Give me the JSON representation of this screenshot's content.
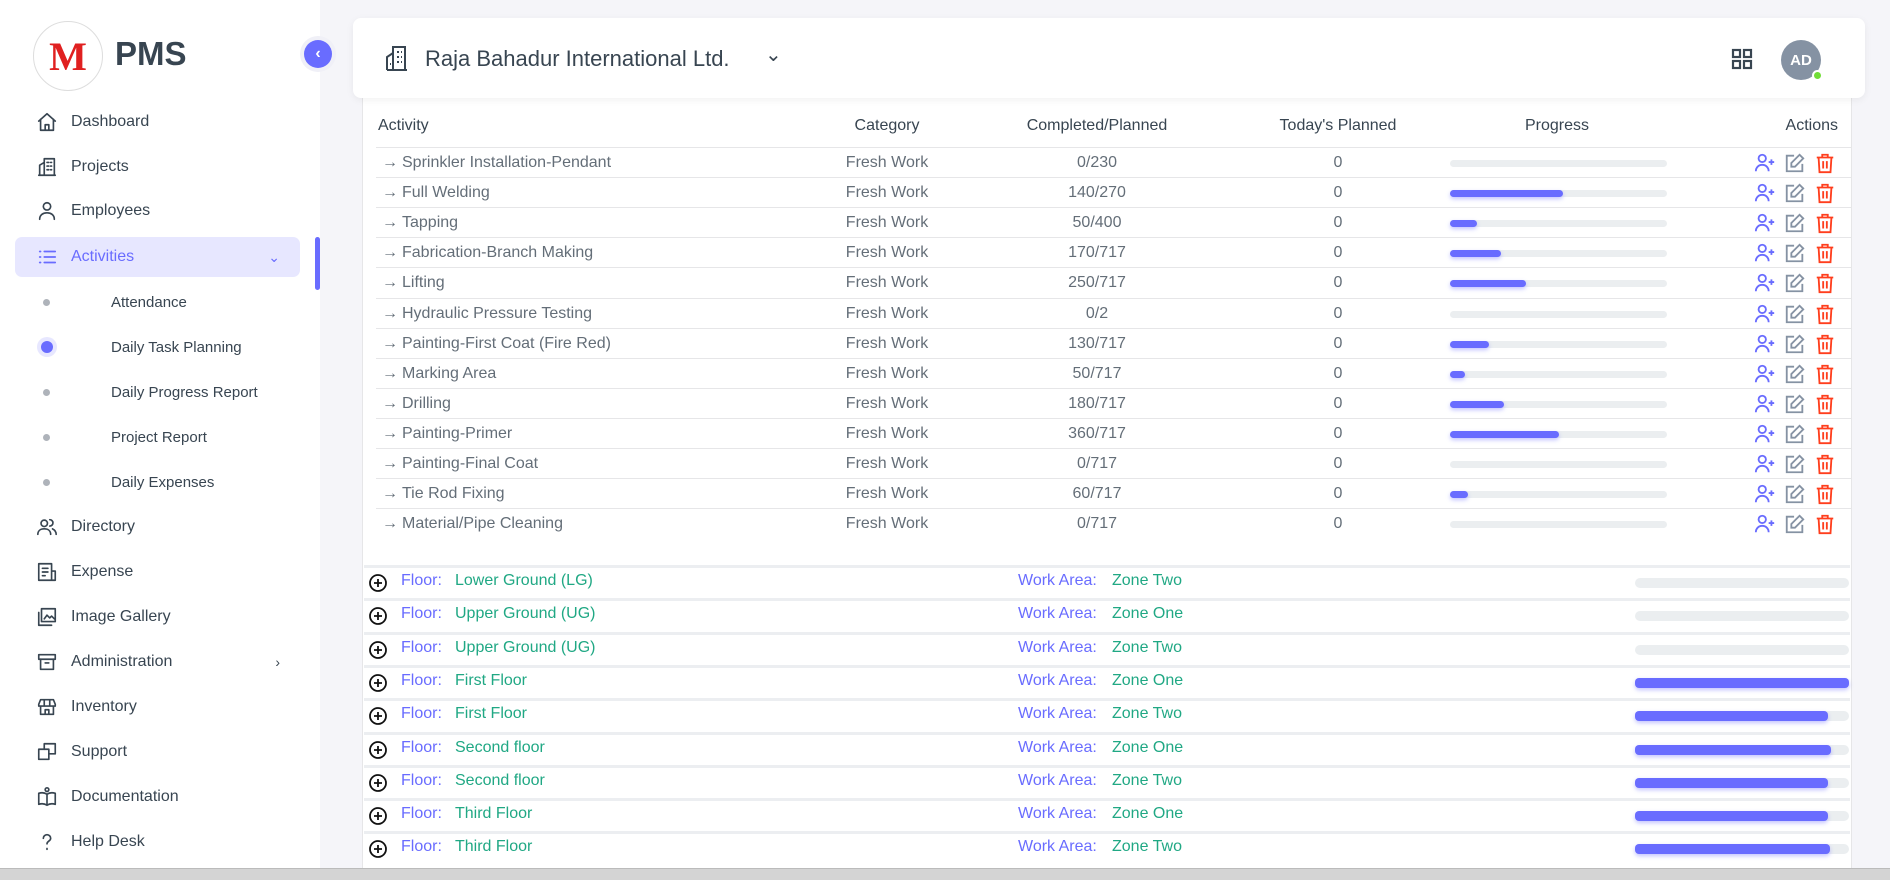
{
  "brand": {
    "logo_letter": "M",
    "name": "PMS"
  },
  "sidebar": {
    "items": [
      {
        "label": "Dashboard",
        "icon": "home-icon"
      },
      {
        "label": "Projects",
        "icon": "building-icon"
      },
      {
        "label": "Employees",
        "icon": "user-icon"
      },
      {
        "label": "Activities",
        "icon": "list-icon",
        "active": true,
        "expanded": true
      },
      {
        "label": "Directory",
        "icon": "contacts-icon"
      },
      {
        "label": "Expense",
        "icon": "receipt-icon"
      },
      {
        "label": "Image Gallery",
        "icon": "gallery-icon"
      },
      {
        "label": "Administration",
        "icon": "archive-icon",
        "has_submenu": true
      },
      {
        "label": "Inventory",
        "icon": "store-icon"
      },
      {
        "label": "Support",
        "icon": "windows-icon"
      },
      {
        "label": "Documentation",
        "icon": "book-icon"
      },
      {
        "label": "Help Desk",
        "icon": "question-icon"
      }
    ],
    "sub_items": [
      {
        "label": "Attendance"
      },
      {
        "label": "Daily Task Planning",
        "active": true
      },
      {
        "label": "Daily Progress Report"
      },
      {
        "label": "Project Report"
      },
      {
        "label": "Daily Expenses"
      }
    ]
  },
  "header": {
    "project": "Raja Bahadur International Ltd.",
    "avatar_initials": "AD",
    "status": "online"
  },
  "table": {
    "headers": [
      "Activity",
      "Category",
      "Completed/Planned",
      "Today's Planned",
      "Progress",
      "Actions"
    ],
    "rows": [
      {
        "activity": "Sprinkler Installation-Pendant",
        "category": "Fresh Work",
        "completed": "0/230",
        "today": "0",
        "progress": 0
      },
      {
        "activity": "Full Welding",
        "category": "Fresh Work",
        "completed": "140/270",
        "today": "0",
        "progress": 51.9
      },
      {
        "activity": "Tapping",
        "category": "Fresh Work",
        "completed": "50/400",
        "today": "0",
        "progress": 12.5
      },
      {
        "activity": "Fabrication-Branch Making",
        "category": "Fresh Work",
        "completed": "170/717",
        "today": "0",
        "progress": 23.7
      },
      {
        "activity": "Lifting",
        "category": "Fresh Work",
        "completed": "250/717",
        "today": "0",
        "progress": 34.9
      },
      {
        "activity": "Hydraulic Pressure Testing",
        "category": "Fresh Work",
        "completed": "0/2",
        "today": "0",
        "progress": 0
      },
      {
        "activity": "Painting-First Coat (Fire Red)",
        "category": "Fresh Work",
        "completed": "130/717",
        "today": "0",
        "progress": 18.1
      },
      {
        "activity": "Marking Area",
        "category": "Fresh Work",
        "completed": "50/717",
        "today": "0",
        "progress": 7
      },
      {
        "activity": "Drilling",
        "category": "Fresh Work",
        "completed": "180/717",
        "today": "0",
        "progress": 25.1
      },
      {
        "activity": "Painting-Primer",
        "category": "Fresh Work",
        "completed": "360/717",
        "today": "0",
        "progress": 50.2
      },
      {
        "activity": "Painting-Final Coat",
        "category": "Fresh Work",
        "completed": "0/717",
        "today": "0",
        "progress": 0
      },
      {
        "activity": "Tie Rod Fixing",
        "category": "Fresh Work",
        "completed": "60/717",
        "today": "0",
        "progress": 8.4
      },
      {
        "activity": "Material/Pipe Cleaning",
        "category": "Fresh Work",
        "completed": "0/717",
        "today": "0",
        "progress": 0
      }
    ]
  },
  "floors": {
    "floor_label": "Floor:",
    "area_label": "Work Area:",
    "rows": [
      {
        "floor": "Lower Ground (LG)",
        "area": "Zone Two",
        "progress": 0
      },
      {
        "floor": "Upper Ground (UG)",
        "area": "Zone One",
        "progress": 0
      },
      {
        "floor": "Upper Ground (UG)",
        "area": "Zone Two",
        "progress": 0
      },
      {
        "floor": "First Floor",
        "area": "Zone One",
        "progress": 100
      },
      {
        "floor": "First Floor",
        "area": "Zone Two",
        "progress": 90
      },
      {
        "floor": "Second floor",
        "area": "Zone One",
        "progress": 91.6
      },
      {
        "floor": "Second floor",
        "area": "Zone Two",
        "progress": 90
      },
      {
        "floor": "Third Floor",
        "area": "Zone One",
        "progress": 90
      },
      {
        "floor": "Third Floor",
        "area": "Zone Two",
        "progress": 91
      }
    ]
  },
  "colors": {
    "primary": "#696cff",
    "success": "#20a884",
    "danger": "#ff3e1d",
    "track": "#ebeef0"
  }
}
